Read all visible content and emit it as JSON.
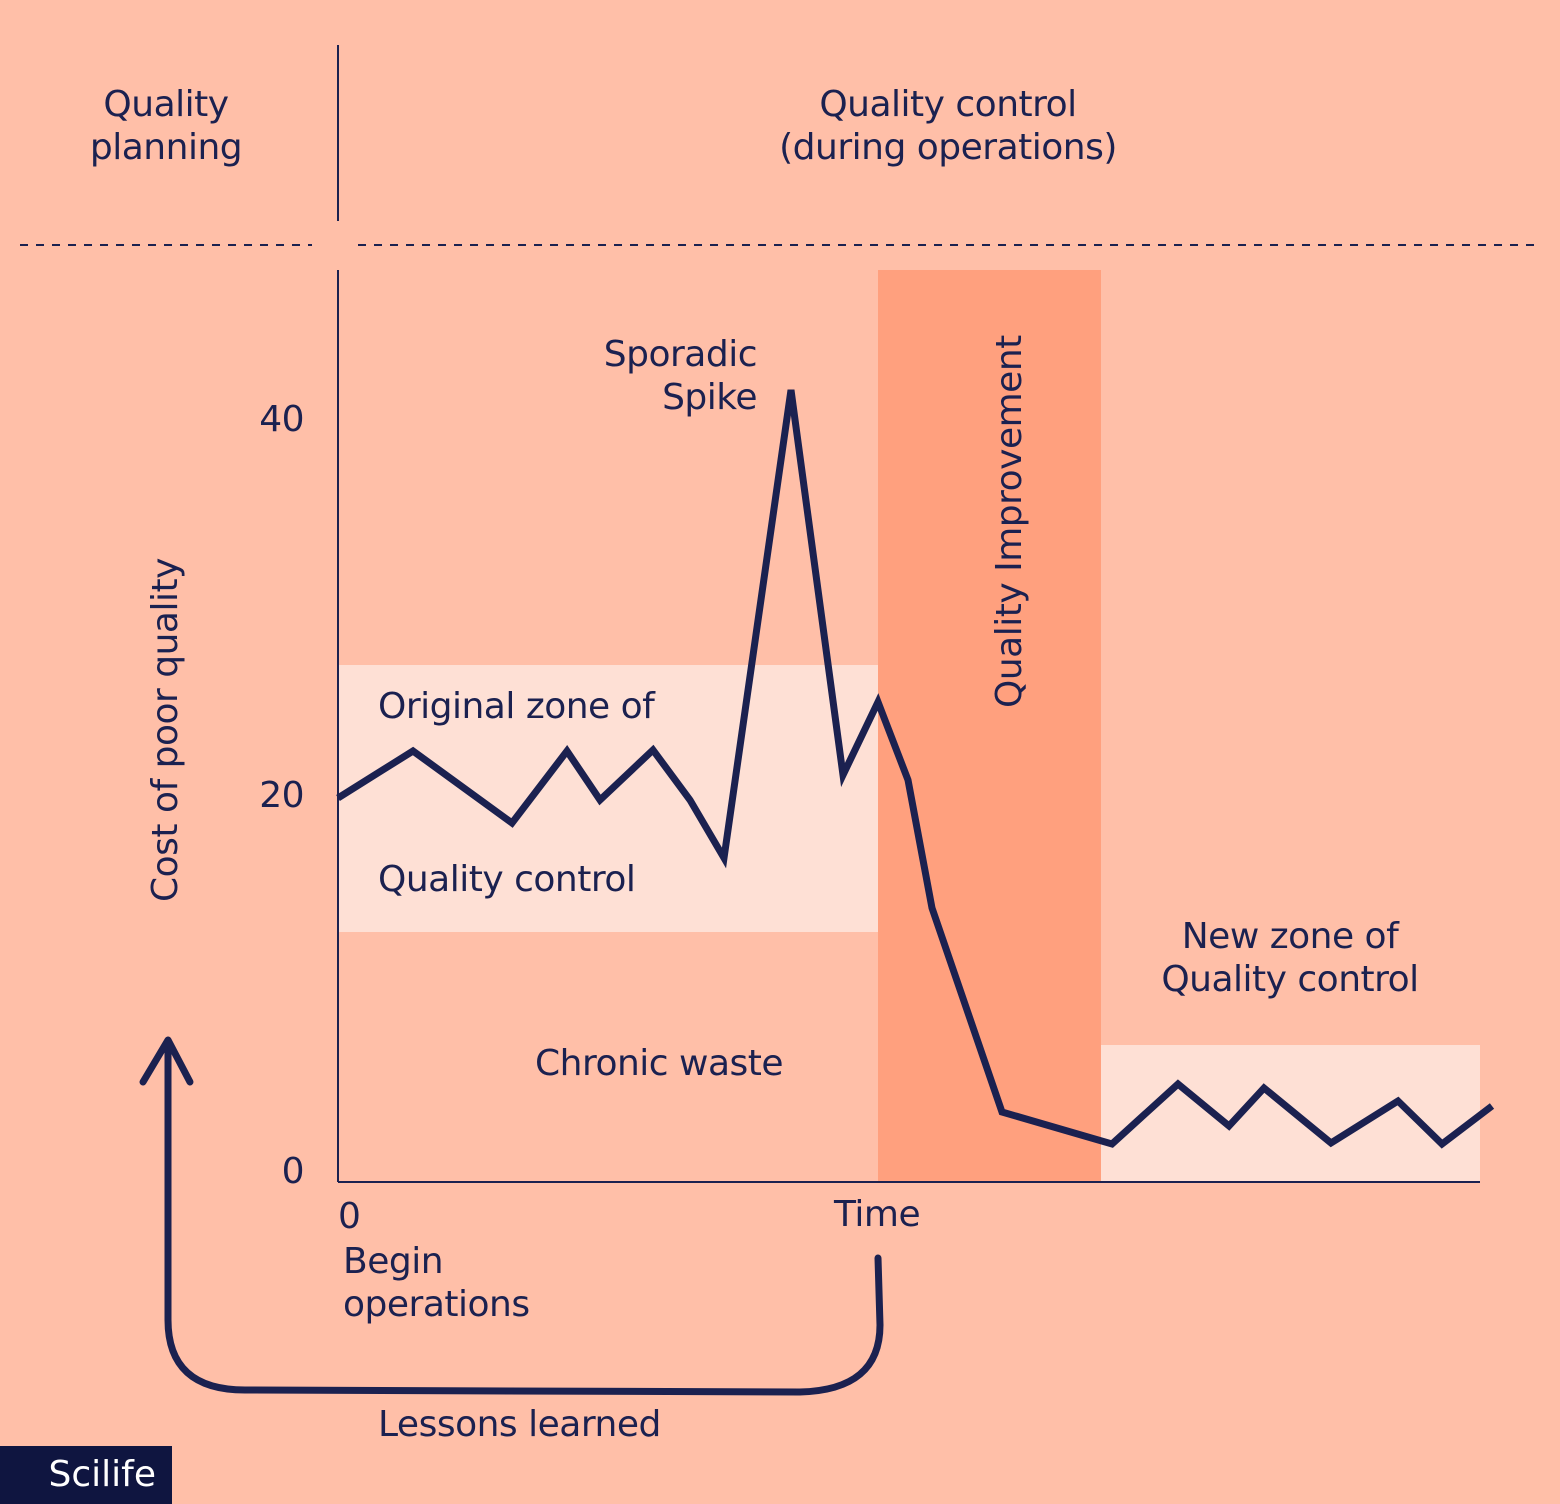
{
  "header": {
    "planning_label_line1": "Quality",
    "planning_label_line2": "planning",
    "control_label_line1": "Quality control",
    "control_label_line2": "(during operations)"
  },
  "axes": {
    "y_label": "Cost of poor quality",
    "y_ticks": [
      "40",
      "20",
      "0"
    ],
    "x_origin": "0",
    "x_label": "Time",
    "begin_line1": "Begin",
    "begin_line2": "operations"
  },
  "annotations": {
    "spike_line1": "Sporadic",
    "spike_line2": "Spike",
    "original_zone_line1": "Original zone of",
    "original_zone_line2": "Quality control",
    "chronic_waste": "Chronic waste",
    "quality_improvement": "Quality Improvement",
    "new_zone_line1": "New zone of",
    "new_zone_line2": "Quality control",
    "lessons_learned": "Lessons learned"
  },
  "logo": {
    "text": "Scilife"
  },
  "colors": {
    "background": "#FFBFA8",
    "ink": "#1B2150",
    "control_zone": "#FEE0D5",
    "improvement_band": "#FFA07E",
    "logo_bg": "#0F1540"
  }
}
